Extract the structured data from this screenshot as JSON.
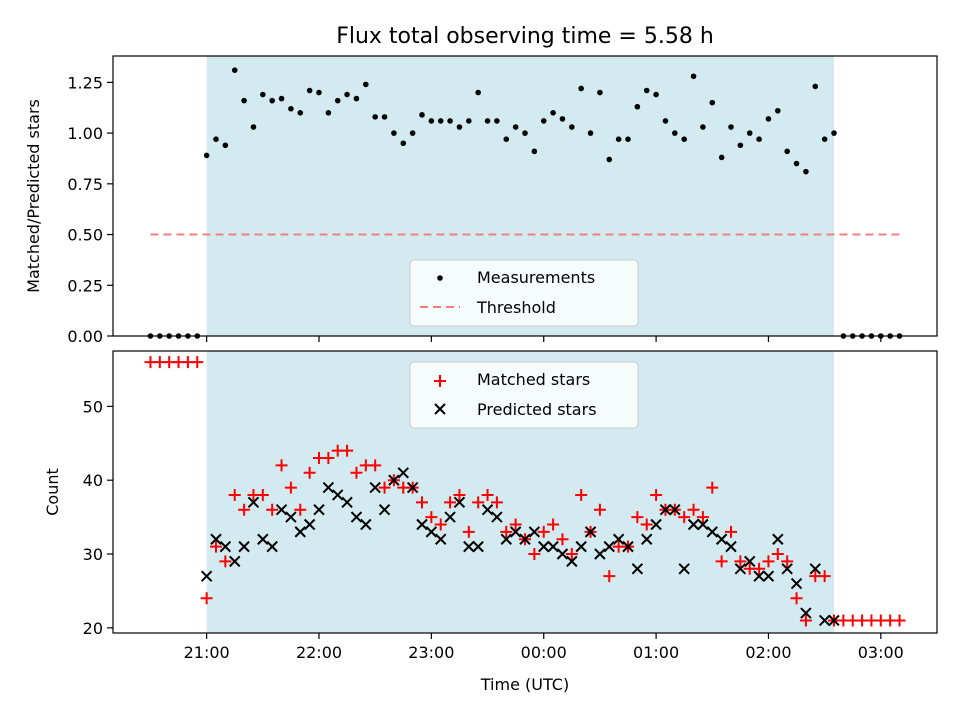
{
  "chart_data": [
    {
      "type": "scatter",
      "title": "Flux total observing time = 5.58 h",
      "xlabel": "",
      "ylabel": "Matched/Predicted stars",
      "ylim": [
        0,
        1.38
      ],
      "yticks": [
        "0.00",
        "0.25",
        "0.50",
        "0.75",
        "1.00",
        "1.25"
      ],
      "ytick_values": [
        0,
        0.25,
        0.5,
        0.75,
        1.0,
        1.25
      ],
      "xlim": [
        "2023-01-01T20:10",
        "2023-01-02T03:30"
      ],
      "observing_window": [
        "2023-01-01T21:00",
        "2023-01-02T02:35"
      ],
      "window_color": "#d3ebf0",
      "legend": {
        "location": "lower center",
        "entries": [
          "Measurements",
          "Threshold"
        ]
      },
      "series": [
        {
          "name": "Measurements",
          "color": "#000000",
          "marker": "dot",
          "x": [
            "2023-01-01T20:30",
            "2023-01-01T20:35",
            "2023-01-01T20:40",
            "2023-01-01T20:45",
            "2023-01-01T20:50",
            "2023-01-01T20:55",
            "2023-01-01T21:00",
            "2023-01-01T21:05",
            "2023-01-01T21:10",
            "2023-01-01T21:15",
            "2023-01-01T21:20",
            "2023-01-01T21:25",
            "2023-01-01T21:30",
            "2023-01-01T21:35",
            "2023-01-01T21:40",
            "2023-01-01T21:45",
            "2023-01-01T21:50",
            "2023-01-01T21:55",
            "2023-01-01T22:00",
            "2023-01-01T22:05",
            "2023-01-01T22:10",
            "2023-01-01T22:15",
            "2023-01-01T22:20",
            "2023-01-01T22:25",
            "2023-01-01T22:30",
            "2023-01-01T22:35",
            "2023-01-01T22:40",
            "2023-01-01T22:45",
            "2023-01-01T22:50",
            "2023-01-01T22:55",
            "2023-01-01T23:00",
            "2023-01-01T23:05",
            "2023-01-01T23:10",
            "2023-01-01T23:15",
            "2023-01-01T23:20",
            "2023-01-01T23:25",
            "2023-01-01T23:30",
            "2023-01-01T23:35",
            "2023-01-01T23:40",
            "2023-01-01T23:45",
            "2023-01-01T23:50",
            "2023-01-01T23:55",
            "2023-01-02T00:00",
            "2023-01-02T00:05",
            "2023-01-02T00:10",
            "2023-01-02T00:15",
            "2023-01-02T00:20",
            "2023-01-02T00:25",
            "2023-01-02T00:30",
            "2023-01-02T00:35",
            "2023-01-02T00:40",
            "2023-01-02T00:45",
            "2023-01-02T00:50",
            "2023-01-02T00:55",
            "2023-01-02T01:00",
            "2023-01-02T01:05",
            "2023-01-02T01:10",
            "2023-01-02T01:15",
            "2023-01-02T01:20",
            "2023-01-02T01:25",
            "2023-01-02T01:30",
            "2023-01-02T01:35",
            "2023-01-02T01:40",
            "2023-01-02T01:45",
            "2023-01-02T01:50",
            "2023-01-02T01:55",
            "2023-01-02T02:00",
            "2023-01-02T02:05",
            "2023-01-02T02:10",
            "2023-01-02T02:15",
            "2023-01-02T02:20",
            "2023-01-02T02:25",
            "2023-01-02T02:30",
            "2023-01-02T02:35",
            "2023-01-02T02:40",
            "2023-01-02T02:45",
            "2023-01-02T02:50",
            "2023-01-02T02:55",
            "2023-01-02T03:00",
            "2023-01-02T03:05",
            "2023-01-02T03:10"
          ],
          "y": [
            0,
            0,
            0,
            0,
            0,
            0,
            0.89,
            0.97,
            0.94,
            1.31,
            1.16,
            1.03,
            1.19,
            1.16,
            1.17,
            1.12,
            1.1,
            1.21,
            1.2,
            1.1,
            1.16,
            1.19,
            1.17,
            1.24,
            1.08,
            1.08,
            1.0,
            0.95,
            1.0,
            1.09,
            1.06,
            1.06,
            1.06,
            1.03,
            1.06,
            1.2,
            1.06,
            1.06,
            0.97,
            1.03,
            1.0,
            0.91,
            1.06,
            1.1,
            1.07,
            1.03,
            1.22,
            1.0,
            1.2,
            0.87,
            0.97,
            0.97,
            1.13,
            1.21,
            1.19,
            1.06,
            1.0,
            0.97,
            1.28,
            1.03,
            1.15,
            0.88,
            1.03,
            0.94,
            1.0,
            0.97,
            1.07,
            1.11,
            0.91,
            0.85,
            0.81,
            1.23,
            0.97,
            1.0,
            0,
            0,
            0,
            0,
            0,
            0,
            0
          ]
        },
        {
          "name": "Threshold",
          "color": "#f08080",
          "style": "dashed",
          "x": [
            "2023-01-01T20:30",
            "2023-01-02T03:10"
          ],
          "y": [
            0.5,
            0.5
          ]
        }
      ]
    },
    {
      "type": "scatter",
      "title": "",
      "xlabel": "Time (UTC)",
      "ylabel": "Count",
      "ylim": [
        19.3,
        57.5
      ],
      "yticks": [
        "20",
        "30",
        "40",
        "50"
      ],
      "ytick_values": [
        20,
        30,
        40,
        50
      ],
      "xlim": [
        "2023-01-01T20:10",
        "2023-01-02T03:30"
      ],
      "xticks": [
        "21:00",
        "22:00",
        "23:00",
        "00:00",
        "01:00",
        "02:00",
        "03:00"
      ],
      "xtick_values": [
        "2023-01-01T21:00",
        "2023-01-01T22:00",
        "2023-01-01T23:00",
        "2023-01-02T00:00",
        "2023-01-02T01:00",
        "2023-01-02T02:00",
        "2023-01-02T03:00"
      ],
      "observing_window": [
        "2023-01-01T21:00",
        "2023-01-02T02:35"
      ],
      "window_color": "#d3ebf0",
      "legend": {
        "location": "upper center",
        "entries": [
          "Matched stars",
          "Predicted stars"
        ]
      },
      "series": [
        {
          "name": "Matched stars",
          "color": "#ff0000",
          "marker": "plus",
          "x": [
            "2023-01-01T20:30",
            "2023-01-01T20:35",
            "2023-01-01T20:40",
            "2023-01-01T20:45",
            "2023-01-01T20:50",
            "2023-01-01T20:55",
            "2023-01-01T21:00",
            "2023-01-01T21:05",
            "2023-01-01T21:10",
            "2023-01-01T21:15",
            "2023-01-01T21:20",
            "2023-01-01T21:25",
            "2023-01-01T21:30",
            "2023-01-01T21:35",
            "2023-01-01T21:40",
            "2023-01-01T21:45",
            "2023-01-01T21:50",
            "2023-01-01T21:55",
            "2023-01-01T22:00",
            "2023-01-01T22:05",
            "2023-01-01T22:10",
            "2023-01-01T22:15",
            "2023-01-01T22:20",
            "2023-01-01T22:25",
            "2023-01-01T22:30",
            "2023-01-01T22:35",
            "2023-01-01T22:40",
            "2023-01-01T22:45",
            "2023-01-01T22:50",
            "2023-01-01T22:55",
            "2023-01-01T23:00",
            "2023-01-01T23:05",
            "2023-01-01T23:10",
            "2023-01-01T23:15",
            "2023-01-01T23:20",
            "2023-01-01T23:25",
            "2023-01-01T23:30",
            "2023-01-01T23:35",
            "2023-01-01T23:40",
            "2023-01-01T23:45",
            "2023-01-01T23:50",
            "2023-01-01T23:55",
            "2023-01-02T00:00",
            "2023-01-02T00:05",
            "2023-01-02T00:10",
            "2023-01-02T00:15",
            "2023-01-02T00:20",
            "2023-01-02T00:25",
            "2023-01-02T00:30",
            "2023-01-02T00:35",
            "2023-01-02T00:40",
            "2023-01-02T00:45",
            "2023-01-02T00:50",
            "2023-01-02T00:55",
            "2023-01-02T01:00",
            "2023-01-02T01:05",
            "2023-01-02T01:10",
            "2023-01-02T01:15",
            "2023-01-02T01:20",
            "2023-01-02T01:25",
            "2023-01-02T01:30",
            "2023-01-02T01:35",
            "2023-01-02T01:40",
            "2023-01-02T01:45",
            "2023-01-02T01:50",
            "2023-01-02T01:55",
            "2023-01-02T02:00",
            "2023-01-02T02:05",
            "2023-01-02T02:10",
            "2023-01-02T02:15",
            "2023-01-02T02:20",
            "2023-01-02T02:25",
            "2023-01-02T02:30",
            "2023-01-02T02:35",
            "2023-01-02T02:40",
            "2023-01-02T02:45",
            "2023-01-02T02:50",
            "2023-01-02T02:55",
            "2023-01-02T03:00",
            "2023-01-02T03:05",
            "2023-01-02T03:10"
          ],
          "y": [
            56,
            56,
            56,
            56,
            56,
            56,
            24,
            31,
            29,
            38,
            36,
            38,
            38,
            36,
            42,
            39,
            36,
            41,
            43,
            43,
            44,
            44,
            41,
            42,
            42,
            39,
            40,
            39,
            39,
            37,
            35,
            34,
            37,
            38,
            33,
            37,
            38,
            37,
            33,
            34,
            32,
            30,
            33,
            34,
            32,
            30,
            38,
            33,
            36,
            27,
            31,
            31,
            35,
            34,
            38,
            36,
            36,
            35,
            36,
            35,
            39,
            29,
            33,
            29,
            28,
            28,
            29,
            30,
            29,
            24,
            21,
            27,
            27,
            21,
            21,
            21,
            21,
            21,
            21,
            21,
            21
          ]
        },
        {
          "name": "Predicted stars",
          "color": "#000000",
          "marker": "x",
          "x": [
            "2023-01-01T21:00",
            "2023-01-01T21:05",
            "2023-01-01T21:10",
            "2023-01-01T21:15",
            "2023-01-01T21:20",
            "2023-01-01T21:25",
            "2023-01-01T21:30",
            "2023-01-01T21:35",
            "2023-01-01T21:40",
            "2023-01-01T21:45",
            "2023-01-01T21:50",
            "2023-01-01T21:55",
            "2023-01-01T22:00",
            "2023-01-01T22:05",
            "2023-01-01T22:10",
            "2023-01-01T22:15",
            "2023-01-01T22:20",
            "2023-01-01T22:25",
            "2023-01-01T22:30",
            "2023-01-01T22:35",
            "2023-01-01T22:40",
            "2023-01-01T22:45",
            "2023-01-01T22:50",
            "2023-01-01T22:55",
            "2023-01-01T23:00",
            "2023-01-01T23:05",
            "2023-01-01T23:10",
            "2023-01-01T23:15",
            "2023-01-01T23:20",
            "2023-01-01T23:25",
            "2023-01-01T23:30",
            "2023-01-01T23:35",
            "2023-01-01T23:40",
            "2023-01-01T23:45",
            "2023-01-01T23:50",
            "2023-01-01T23:55",
            "2023-01-02T00:00",
            "2023-01-02T00:05",
            "2023-01-02T00:10",
            "2023-01-02T00:15",
            "2023-01-02T00:20",
            "2023-01-02T00:25",
            "2023-01-02T00:30",
            "2023-01-02T00:35",
            "2023-01-02T00:40",
            "2023-01-02T00:45",
            "2023-01-02T00:50",
            "2023-01-02T00:55",
            "2023-01-02T01:00",
            "2023-01-02T01:05",
            "2023-01-02T01:10",
            "2023-01-02T01:15",
            "2023-01-02T01:20",
            "2023-01-02T01:25",
            "2023-01-02T01:30",
            "2023-01-02T01:35",
            "2023-01-02T01:40",
            "2023-01-02T01:45",
            "2023-01-02T01:50",
            "2023-01-02T01:55",
            "2023-01-02T02:00",
            "2023-01-02T02:05",
            "2023-01-02T02:10",
            "2023-01-02T02:15",
            "2023-01-02T02:20",
            "2023-01-02T02:25",
            "2023-01-02T02:30",
            "2023-01-02T02:35"
          ],
          "y": [
            27,
            32,
            31,
            29,
            31,
            37,
            32,
            31,
            36,
            35,
            33,
            34,
            36,
            39,
            38,
            37,
            35,
            34,
            39,
            36,
            40,
            41,
            39,
            34,
            33,
            32,
            35,
            37,
            31,
            31,
            36,
            35,
            32,
            33,
            32,
            33,
            31,
            31,
            30,
            29,
            31,
            33,
            30,
            31,
            32,
            31,
            28,
            32,
            34,
            36,
            36,
            28,
            34,
            34,
            33,
            32,
            31,
            28,
            29,
            27,
            27,
            32,
            28,
            26,
            22,
            28,
            21,
            21
          ]
        }
      ]
    }
  ]
}
